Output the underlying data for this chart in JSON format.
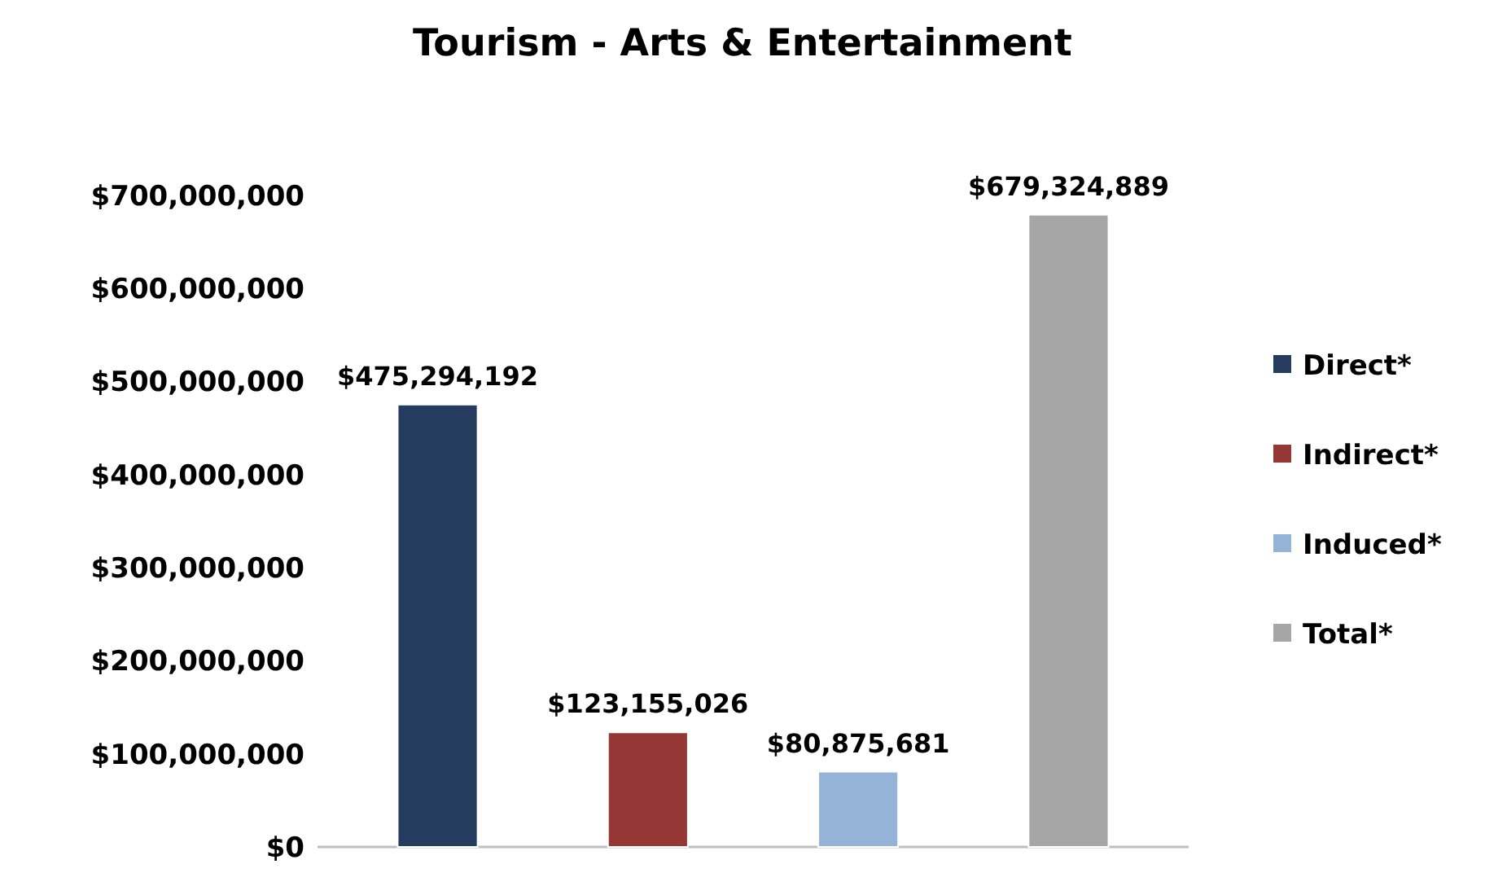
{
  "chart_data": {
    "type": "bar",
    "title": "Tourism - Arts & Entertainment",
    "categories": [
      null
    ],
    "series": [
      {
        "name": "Direct*",
        "color": "#253c5e",
        "values": [
          475294192
        ],
        "value_labels": [
          "$475,294,192"
        ]
      },
      {
        "name": "Indirect*",
        "color": "#953735",
        "values": [
          123155026
        ],
        "value_labels": [
          "$123,155,026"
        ]
      },
      {
        "name": "Induced*",
        "color": "#95b3d7",
        "values": [
          80875681
        ],
        "value_labels": [
          "$80,875,681"
        ]
      },
      {
        "name": "Total*",
        "color": "#a6a6a6",
        "values": [
          679324889
        ],
        "value_labels": [
          "$679,324,889"
        ]
      }
    ],
    "ylim": [
      0,
      700000000
    ],
    "yticks": [
      {
        "value": 0,
        "label": "$0"
      },
      {
        "value": 100000000,
        "label": "$100,000,000"
      },
      {
        "value": 200000000,
        "label": "$200,000,000"
      },
      {
        "value": 300000000,
        "label": "$300,000,000"
      },
      {
        "value": 400000000,
        "label": "$400,000,000"
      },
      {
        "value": 500000000,
        "label": "$500,000,000"
      },
      {
        "value": 600000000,
        "label": "$600,000,000"
      },
      {
        "value": 700000000,
        "label": "$700,000,000"
      }
    ],
    "grid": false,
    "legend": "right"
  }
}
